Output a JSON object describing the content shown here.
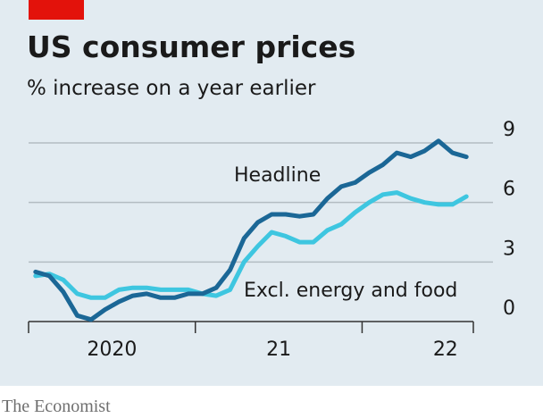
{
  "chart_data": {
    "type": "line",
    "title": "US consumer prices",
    "subtitle": "% increase on a year earlier",
    "source": "The Economist",
    "annotations": [
      "Headline",
      "Excl. energy and food"
    ],
    "x": [
      2020.042,
      2020.125,
      2020.208,
      2020.292,
      2020.375,
      2020.458,
      2020.542,
      2020.625,
      2020.708,
      2020.792,
      2020.875,
      2020.958,
      2021.042,
      2021.125,
      2021.208,
      2021.292,
      2021.375,
      2021.458,
      2021.542,
      2021.625,
      2021.708,
      2021.792,
      2021.875,
      2021.958,
      2022.042,
      2022.125,
      2022.208,
      2022.292,
      2022.375,
      2022.458,
      2022.542,
      2022.625
    ],
    "series": [
      {
        "name": "Excl. energy and food",
        "color": "#3ec6e0",
        "values": [
          2.3,
          2.4,
          2.1,
          1.4,
          1.2,
          1.2,
          1.6,
          1.7,
          1.7,
          1.6,
          1.6,
          1.6,
          1.4,
          1.3,
          1.6,
          3.0,
          3.8,
          4.5,
          4.3,
          4.0,
          4.0,
          4.6,
          4.9,
          5.5,
          6.0,
          6.4,
          6.5,
          6.2,
          6.0,
          5.9,
          5.9,
          6.3
        ]
      },
      {
        "name": "Headline",
        "color": "#1b6796",
        "values": [
          2.5,
          2.3,
          1.5,
          0.3,
          0.1,
          0.6,
          1.0,
          1.3,
          1.4,
          1.2,
          1.2,
          1.4,
          1.4,
          1.7,
          2.6,
          4.2,
          5.0,
          5.4,
          5.4,
          5.3,
          5.4,
          6.2,
          6.8,
          7.0,
          7.5,
          7.9,
          8.5,
          8.3,
          8.6,
          9.1,
          8.5,
          8.3
        ]
      }
    ],
    "xlim": [
      2020,
      2022.667
    ],
    "xticks": [
      {
        "value": 2020,
        "label": "2020"
      },
      {
        "value": 2021,
        "label": "21"
      },
      {
        "value": 2022,
        "label": "22"
      }
    ],
    "ylim": [
      0,
      9
    ],
    "yticks": [
      0,
      3,
      6,
      9
    ],
    "grid": true
  }
}
